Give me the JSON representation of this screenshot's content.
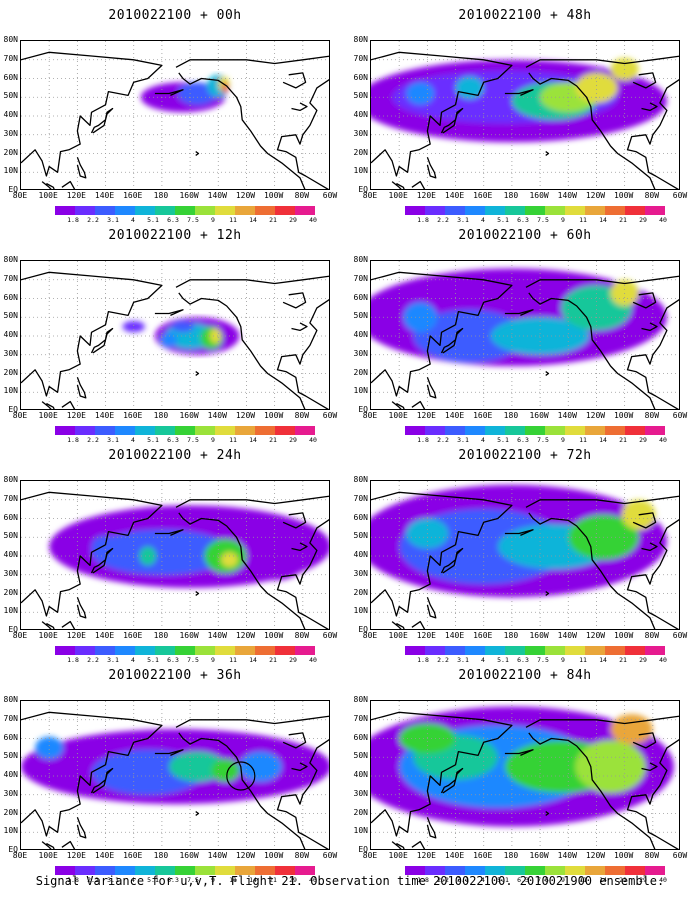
{
  "panels": [
    {
      "title": "2010022100 + 00h"
    },
    {
      "title": "2010022100 + 48h"
    },
    {
      "title": "2010022100 + 12h"
    },
    {
      "title": "2010022100 + 60h"
    },
    {
      "title": "2010022100 + 24h"
    },
    {
      "title": "2010022100 + 72h"
    },
    {
      "title": "2010022100 + 36h"
    },
    {
      "title": "2010022100 + 84h"
    }
  ],
  "lat_labels": [
    "80N",
    "70N",
    "60N",
    "50N",
    "40N",
    "30N",
    "20N",
    "10N",
    "EQ"
  ],
  "lon_labels": [
    "80E",
    "100E",
    "120E",
    "140E",
    "160E",
    "180",
    "160W",
    "140W",
    "120W",
    "100W",
    "80W",
    "60W"
  ],
  "colorbar": {
    "labels": [
      "1.8",
      "2.2",
      "3.1",
      "4",
      "5.1",
      "6.3",
      "7.5",
      "9",
      "11",
      "14",
      "21",
      "29",
      "40"
    ],
    "colors": [
      "#8a00e6",
      "#6a2dff",
      "#3c5cff",
      "#1e88ff",
      "#10b4d9",
      "#17c79a",
      "#36d236",
      "#9be23a",
      "#e0dc3c",
      "#e9a63a",
      "#ee6e33",
      "#f0303a",
      "#e61b8f"
    ]
  },
  "footer": "Signal Variance for u,v,T. Flight 21. Observation time 2010022100. 2010021900 ensemble."
}
